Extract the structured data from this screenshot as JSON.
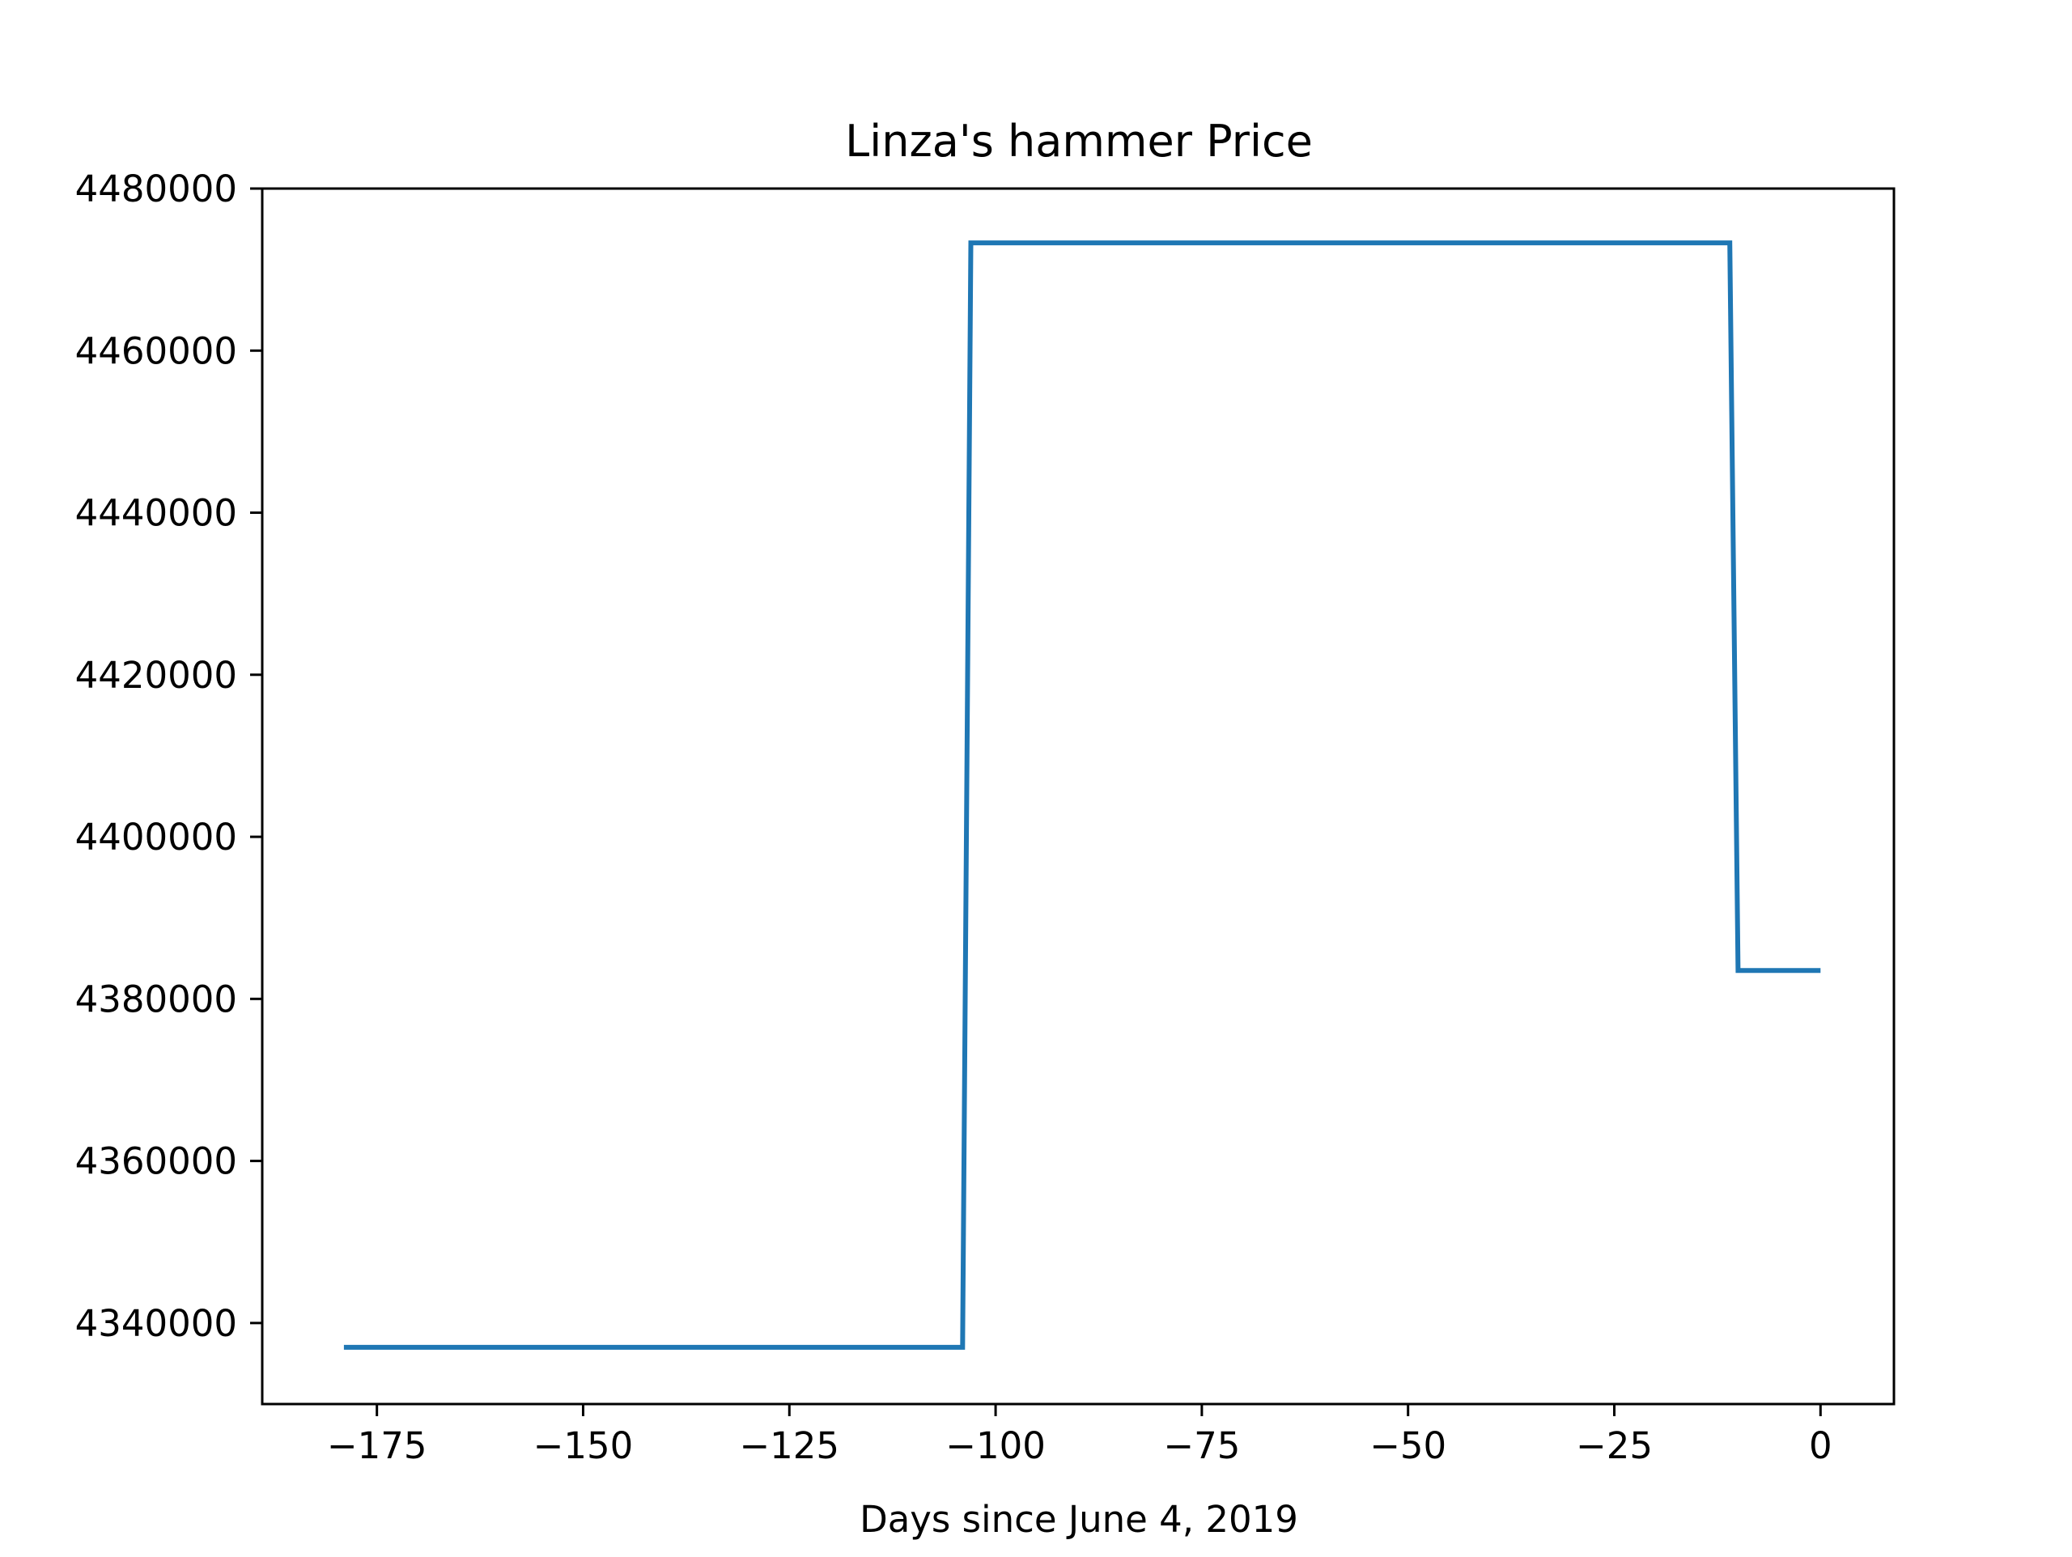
{
  "chart_data": {
    "type": "line",
    "title": "Linza's hammer Price",
    "xlabel": "Days since June 4, 2019",
    "ylabel": "",
    "xlim": [
      -188.9,
      8.9
    ],
    "ylim": [
      4330000,
      4480000
    ],
    "x_ticks": [
      -175,
      -150,
      -125,
      -100,
      -75,
      -50,
      -25,
      0
    ],
    "x_tick_labels": [
      "−175",
      "−150",
      "−125",
      "−100",
      "−75",
      "−50",
      "−25",
      "0"
    ],
    "y_ticks": [
      4340000,
      4360000,
      4380000,
      4400000,
      4420000,
      4440000,
      4460000,
      4480000
    ],
    "y_tick_labels": [
      "4340000",
      "4360000",
      "4380000",
      "4400000",
      "4420000",
      "4440000",
      "4460000",
      "4480000"
    ],
    "grid": false,
    "series": [
      {
        "color": "#1f77b4",
        "x": [
          -179,
          -104,
          -103,
          -11,
          -10,
          0
        ],
        "y": [
          4337000,
          4337000,
          4473300,
          4473300,
          4383500,
          4383500
        ]
      }
    ]
  }
}
